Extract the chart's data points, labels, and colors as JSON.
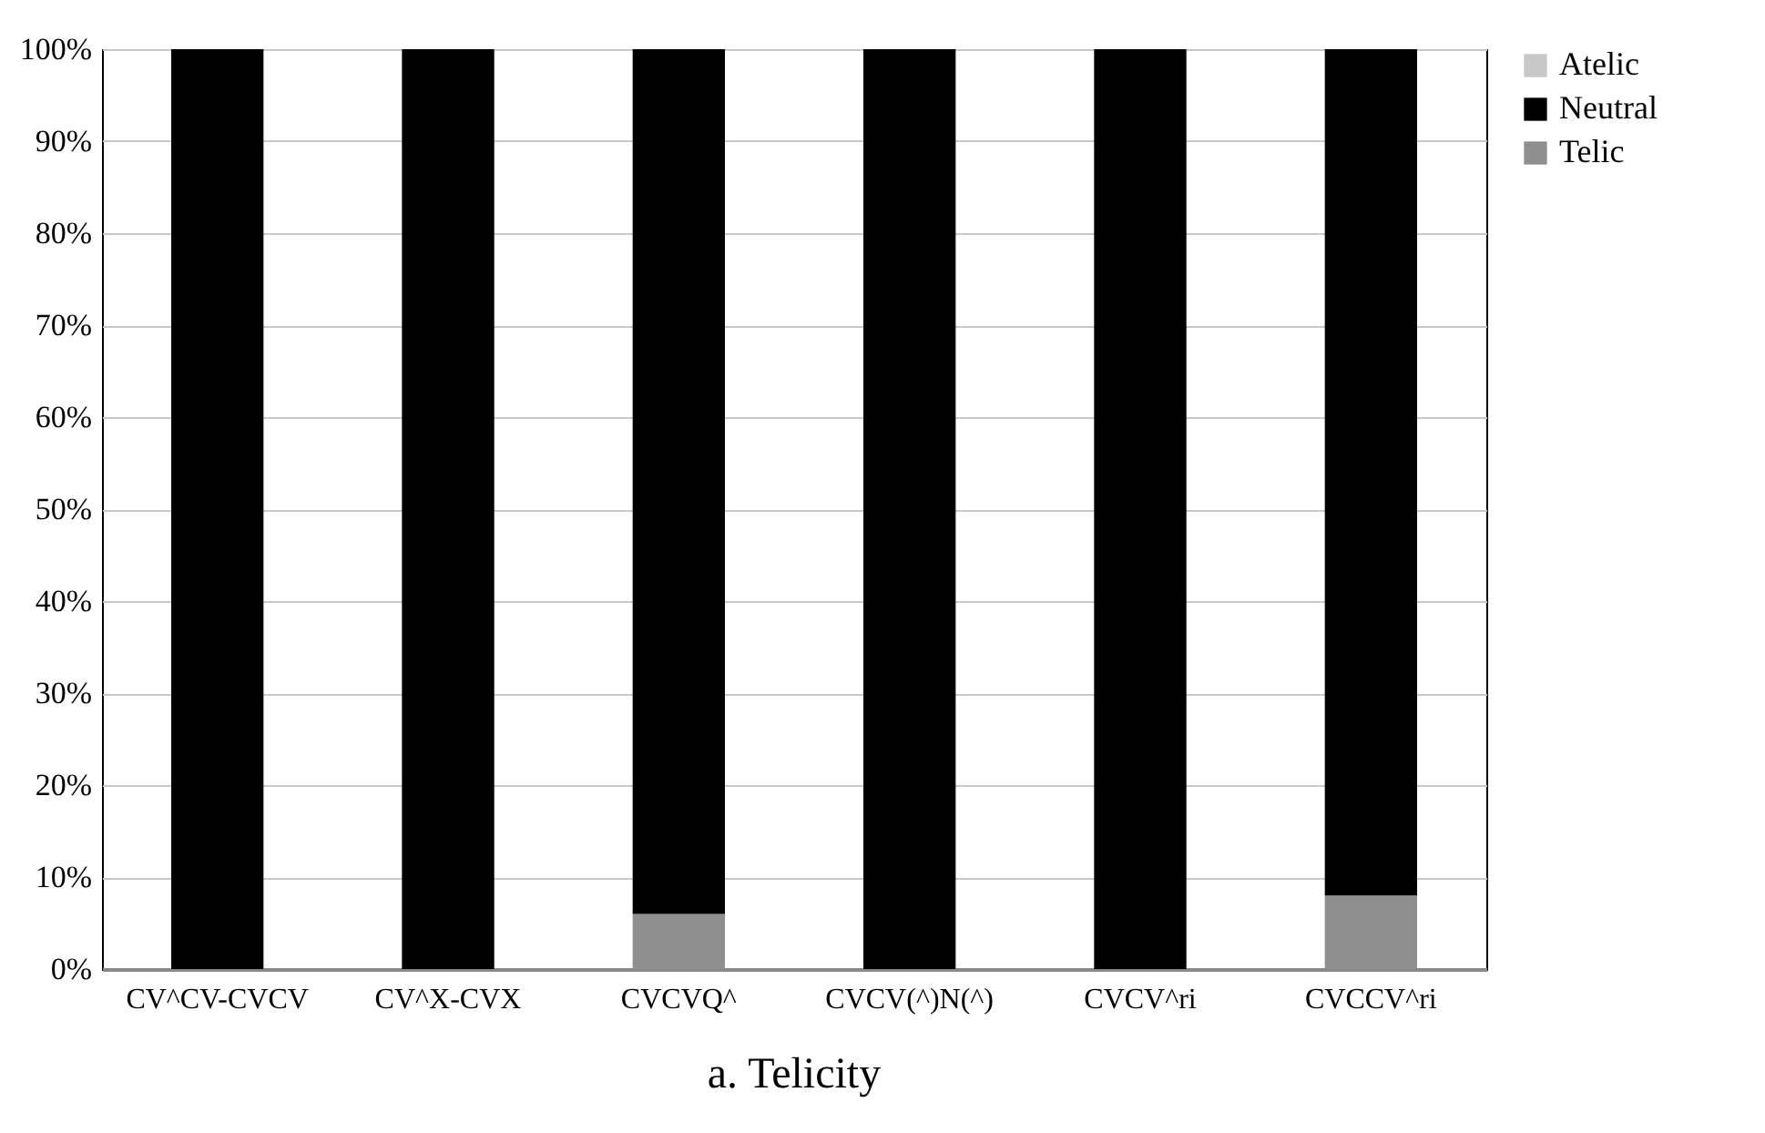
{
  "chart_data": {
    "type": "bar",
    "title": "a. Telicity",
    "stacked": true,
    "categories": [
      "CV^CV-CVCV",
      "CV^X-CVX",
      "CVCVQ^",
      "CVCV(^)N(^)",
      "CVCV^ri",
      "CVCCV^ri"
    ],
    "series": [
      {
        "name": "Telic",
        "color": "#8f8f8f",
        "values": [
          0,
          0,
          6,
          0,
          0,
          8
        ]
      },
      {
        "name": "Neutral",
        "color": "#000000",
        "values": [
          100,
          100,
          94,
          100,
          100,
          92
        ]
      },
      {
        "name": "Atelic",
        "color": "#c8c8c8",
        "values": [
          0,
          0,
          0,
          0,
          0,
          0
        ]
      }
    ],
    "ylim": [
      0,
      100
    ],
    "yticks": [
      {
        "value": 0,
        "label": "0%"
      },
      {
        "value": 10,
        "label": "10%"
      },
      {
        "value": 20,
        "label": "20%"
      },
      {
        "value": 30,
        "label": "30%"
      },
      {
        "value": 40,
        "label": "40%"
      },
      {
        "value": 50,
        "label": "50%"
      },
      {
        "value": 60,
        "label": "60%"
      },
      {
        "value": 70,
        "label": "70%"
      },
      {
        "value": 80,
        "label": "80%"
      },
      {
        "value": 90,
        "label": "90%"
      },
      {
        "value": 100,
        "label": "100%"
      }
    ],
    "grid": "y",
    "legend": "top right"
  }
}
